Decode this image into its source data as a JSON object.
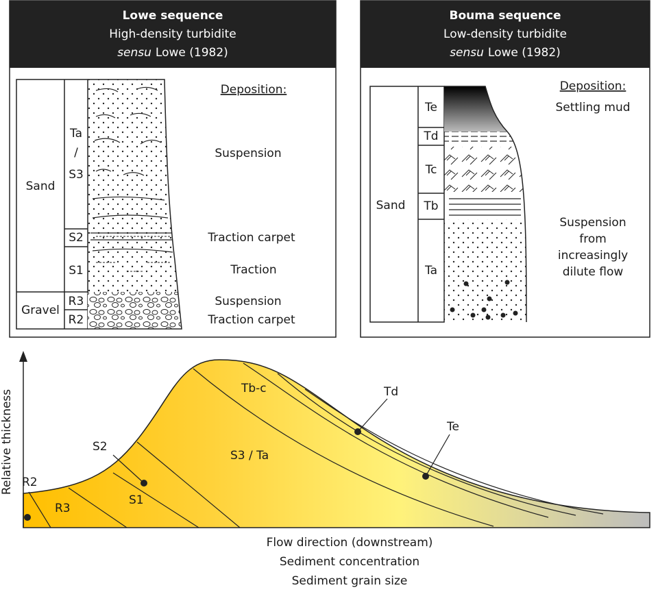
{
  "lowe": {
    "title": "Lowe sequence",
    "subtitle": "High-density turbidite",
    "citation": {
      "italic": "sensu",
      "text": "Lowe (1982)"
    },
    "grain_sizes": [
      "Sand",
      "Gravel"
    ],
    "units": [
      [
        "Ta",
        "/",
        "S3"
      ],
      "S2",
      "S1",
      "R3",
      "R2"
    ],
    "deposition_heading": "Deposition:",
    "deposition": [
      "Suspension",
      "Traction carpet",
      "Traction",
      "Suspension",
      "Traction carpet"
    ]
  },
  "bouma": {
    "title": "Bouma sequence",
    "subtitle": "Low-density turbidite",
    "citation": {
      "italic": "sensu",
      "text": "Lowe (1982)"
    },
    "grain_sizes": [
      "Sand"
    ],
    "units": [
      "Te",
      "Td",
      "Tc",
      "Tb",
      "Ta"
    ],
    "deposition_heading": "Deposition:",
    "deposition": [
      "Settling mud",
      [
        "Suspension",
        "from",
        "increasingly",
        "dilute flow"
      ]
    ]
  },
  "profile": {
    "y_axis": "Relative thickness",
    "labels": [
      "R2",
      "R3",
      "S1",
      "S2",
      "S3 / Ta",
      "Tb-c",
      "Td",
      "Te"
    ],
    "x_axis": [
      "Flow direction (downstream)",
      "Sediment concentration",
      "Sediment grain size"
    ]
  }
}
